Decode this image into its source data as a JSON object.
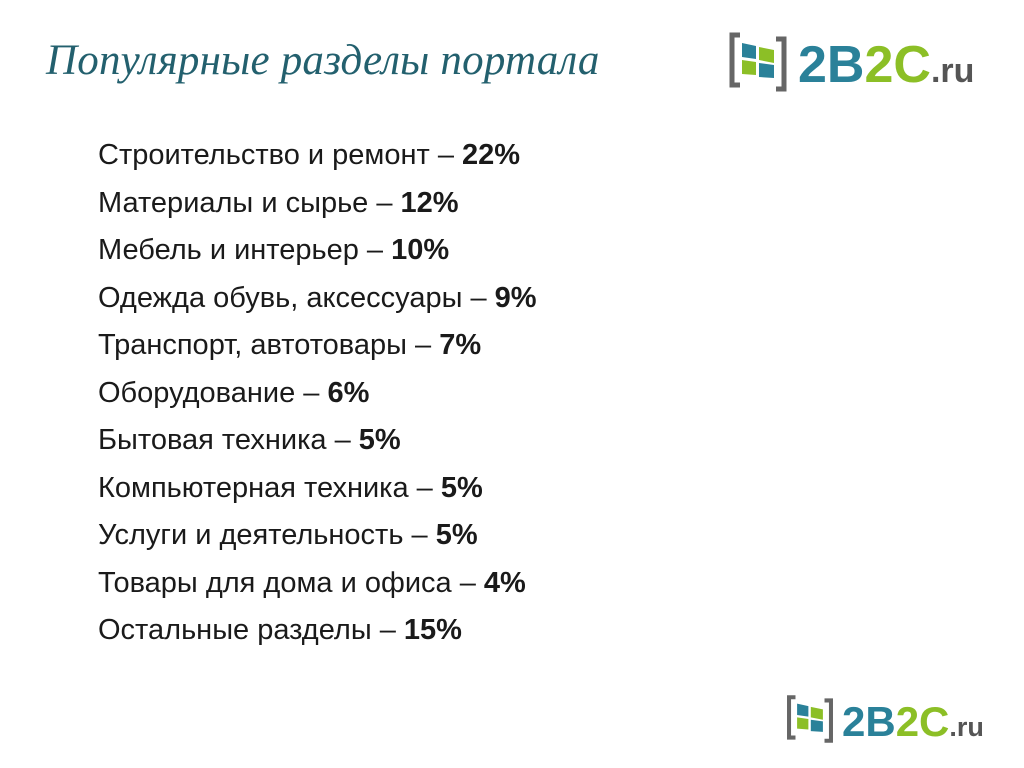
{
  "slide": {
    "title": "Популярные разделы портала",
    "logo": {
      "part1": "2B",
      "part2": "2C",
      "suffix": ".ru"
    },
    "items": [
      {
        "label": "Строительство и ремонт – ",
        "percent": "22%"
      },
      {
        "label": "Материалы и сырье – ",
        "percent": "12%"
      },
      {
        "label": "Мебель и интерьер – ",
        "percent": "10%"
      },
      {
        "label": "Одежда обувь, аксессуары – ",
        "percent": "9%"
      },
      {
        "label": "Транспорт, автотовары – ",
        "percent": "7%"
      },
      {
        "label": "Оборудование – ",
        "percent": "6%"
      },
      {
        "label": "Бытовая техника – ",
        "percent": "5%"
      },
      {
        "label": "Компьютерная техника – ",
        "percent": "5%"
      },
      {
        "label": "Услуги и деятельность – ",
        "percent": "5%"
      },
      {
        "label": "Товары для дома и офиса – ",
        "percent": "4%"
      },
      {
        "label": "Остальные разделы – ",
        "percent": "15%"
      }
    ],
    "colors": {
      "title": "#23606e",
      "logo_blue": "#2a8199",
      "logo_green": "#8cbf26",
      "logo_gray": "#555555"
    }
  }
}
